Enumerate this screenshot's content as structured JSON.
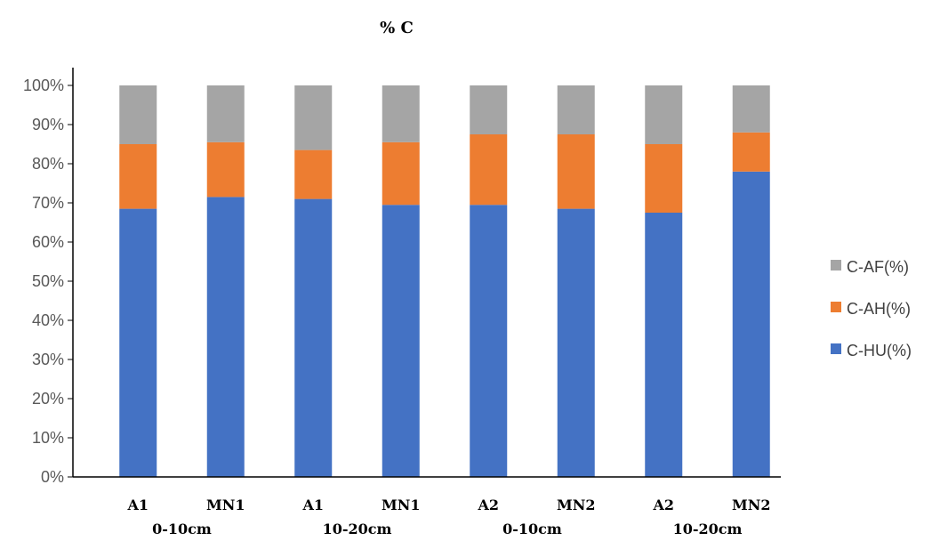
{
  "chart_data": {
    "type": "bar",
    "stacked": true,
    "title": "% C",
    "categories": [
      "A1",
      "MN1",
      "A1",
      "MN1",
      "A2",
      "MN2",
      "A2",
      "MN2"
    ],
    "category_groups": [
      {
        "label": "0-10cm",
        "members": [
          0,
          1
        ]
      },
      {
        "label": "10-20cm",
        "members": [
          2,
          3
        ]
      },
      {
        "label": "0-10cm",
        "members": [
          4,
          5
        ]
      },
      {
        "label": "10-20cm",
        "members": [
          6,
          7
        ]
      }
    ],
    "series": [
      {
        "name": "C-HU(%)",
        "color": "#4472C4",
        "values": [
          68.5,
          71.5,
          71,
          69.5,
          69.5,
          68.5,
          67.5,
          78
        ]
      },
      {
        "name": "C-AH(%)",
        "color": "#ED7D31",
        "values": [
          16.5,
          14,
          12.5,
          16,
          18,
          19,
          17.5,
          10
        ]
      },
      {
        "name": "C-AF(%)",
        "color": "#A5A5A5",
        "values": [
          15,
          14.5,
          16.5,
          14.5,
          12.5,
          12.5,
          15,
          12
        ]
      }
    ],
    "y_ticks": [
      "0%",
      "10%",
      "20%",
      "30%",
      "40%",
      "50%",
      "60%",
      "70%",
      "80%",
      "90%",
      "100%"
    ],
    "ylim": [
      0,
      100
    ],
    "legend_order": [
      "C-AF(%)",
      "C-AH(%)",
      "C-HU(%)"
    ],
    "legend_position": "right",
    "grid": false
  }
}
